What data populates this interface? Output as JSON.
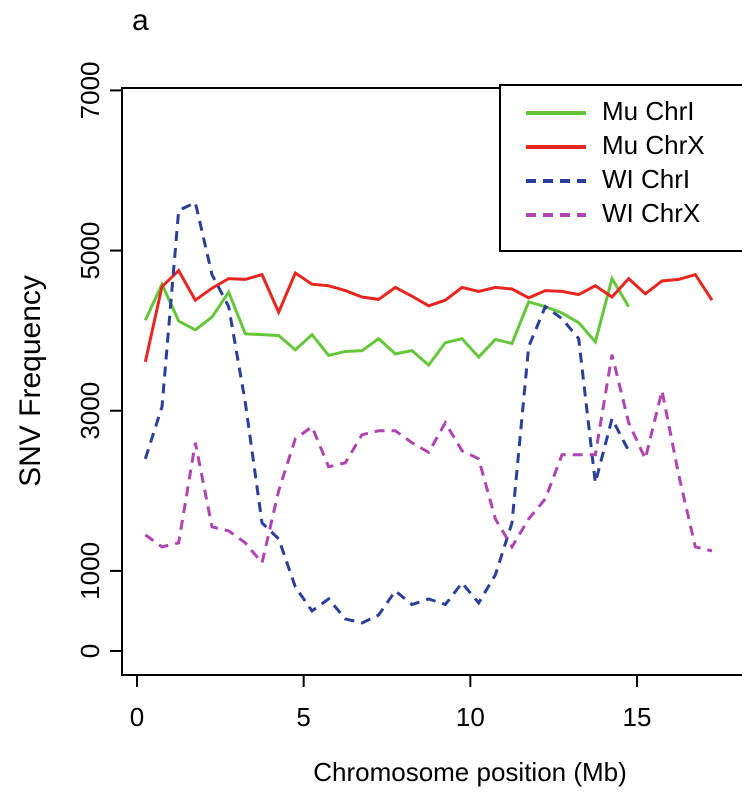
{
  "chart_data": {
    "type": "line",
    "panel_label": "a",
    "x_label": "Chromosome position (Mb)",
    "y_label": "SNV Frequency",
    "xlim": [
      -0.45,
      18.15
    ],
    "ylim": [
      -300,
      7030
    ],
    "xticks": [
      0,
      5,
      10,
      15
    ],
    "yticks": [
      0,
      1000,
      3000,
      5000,
      7000
    ],
    "legend": "top-right",
    "series": [
      {
        "name": "Mu ChrI",
        "color": "#66c639",
        "dash": "solid",
        "x": [
          0.25,
          0.75,
          1.25,
          1.75,
          2.25,
          2.75,
          3.25,
          3.75,
          4.25,
          4.75,
          5.25,
          5.75,
          6.25,
          6.75,
          7.25,
          7.75,
          8.25,
          8.75,
          9.25,
          9.75,
          10.25,
          10.75,
          11.25,
          11.75,
          12.25,
          12.75,
          13.25,
          13.75,
          14.25,
          14.75
        ],
        "values": [
          4130,
          4580,
          4120,
          4010,
          4170,
          4480,
          3960,
          3950,
          3940,
          3760,
          3950,
          3690,
          3740,
          3750,
          3900,
          3710,
          3750,
          3570,
          3850,
          3900,
          3670,
          3890,
          3840,
          4360,
          4300,
          4220,
          4100,
          3860,
          4650,
          4300
        ]
      },
      {
        "name": "Mu ChrX",
        "color": "#e8261f",
        "dash": "solid",
        "x": [
          0.25,
          0.75,
          1.25,
          1.75,
          2.25,
          2.75,
          3.25,
          3.75,
          4.25,
          4.75,
          5.25,
          5.75,
          6.25,
          6.75,
          7.25,
          7.75,
          8.25,
          8.75,
          9.25,
          9.75,
          10.25,
          10.75,
          11.25,
          11.75,
          12.25,
          12.75,
          13.25,
          13.75,
          14.25,
          14.75,
          15.25,
          15.75,
          16.25,
          16.75,
          17.25
        ],
        "values": [
          3610,
          4550,
          4750,
          4380,
          4530,
          4650,
          4640,
          4700,
          4230,
          4720,
          4580,
          4560,
          4500,
          4420,
          4390,
          4540,
          4430,
          4310,
          4380,
          4540,
          4490,
          4540,
          4520,
          4410,
          4500,
          4490,
          4450,
          4560,
          4420,
          4650,
          4460,
          4620,
          4640,
          4700,
          4380
        ]
      },
      {
        "name": "WI ChrI",
        "color": "#2a3e9a",
        "dash": "dashed",
        "x": [
          0.25,
          0.75,
          1.25,
          1.75,
          2.25,
          2.75,
          3.25,
          3.75,
          4.25,
          4.75,
          5.25,
          5.75,
          6.25,
          6.75,
          7.25,
          7.75,
          8.25,
          8.75,
          9.25,
          9.75,
          10.25,
          10.75,
          11.25,
          11.75,
          12.25,
          12.75,
          13.25,
          13.75,
          14.25,
          14.75
        ],
        "values": [
          2400,
          3050,
          5500,
          5600,
          4700,
          4300,
          3100,
          1600,
          1400,
          800,
          500,
          650,
          400,
          350,
          450,
          750,
          580,
          650,
          580,
          850,
          600,
          950,
          1600,
          3800,
          4300,
          4150,
          3900,
          2100,
          2900,
          2500
        ]
      },
      {
        "name": "WI ChrX",
        "color": "#b044b0",
        "dash": "dashed",
        "x": [
          0.25,
          0.75,
          1.25,
          1.75,
          2.25,
          2.75,
          3.25,
          3.75,
          4.25,
          4.75,
          5.25,
          5.75,
          6.25,
          6.75,
          7.25,
          7.75,
          8.25,
          8.75,
          9.25,
          9.75,
          10.25,
          10.75,
          11.25,
          11.75,
          12.25,
          12.75,
          13.25,
          13.75,
          14.25,
          14.75,
          15.25,
          15.75,
          16.25,
          16.75,
          17.25
        ],
        "values": [
          1450,
          1300,
          1350,
          2600,
          1550,
          1500,
          1350,
          1100,
          2000,
          2650,
          2800,
          2300,
          2350,
          2700,
          2750,
          2750,
          2600,
          2480,
          2850,
          2500,
          2400,
          1650,
          1300,
          1650,
          1900,
          2450,
          2450,
          2450,
          3700,
          2850,
          2400,
          3250,
          2200,
          1300,
          1250
        ]
      }
    ]
  }
}
